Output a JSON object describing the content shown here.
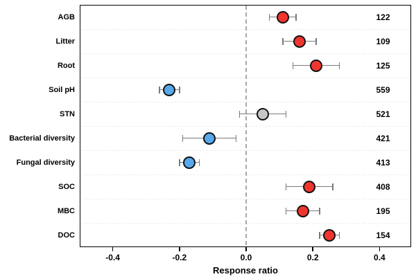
{
  "chart_data": {
    "type": "scatter",
    "subtype": "forest-plot-means-with-confidence-intervals",
    "title": "",
    "xlabel": "Response ratio",
    "xlim": [
      -0.5,
      0.5
    ],
    "xticks": [
      {
        "value": -0.4,
        "label": "-0.4"
      },
      {
        "value": -0.2,
        "label": "-0.2"
      },
      {
        "value": 0.0,
        "label": "0.0"
      },
      {
        "value": 0.2,
        "label": "0.2"
      },
      {
        "value": 0.4,
        "label": "0.4"
      }
    ],
    "zero_reference_line": 0.0,
    "grid": "dotted horizontal separators between category rows",
    "legend_position": "none",
    "points": [
      {
        "category": "AGB",
        "mean": 0.11,
        "ci_low": 0.07,
        "ci_high": 0.15,
        "n": 122,
        "color": "red"
      },
      {
        "category": "Litter",
        "mean": 0.16,
        "ci_low": 0.11,
        "ci_high": 0.21,
        "n": 109,
        "color": "red"
      },
      {
        "category": "Root",
        "mean": 0.21,
        "ci_low": 0.14,
        "ci_high": 0.28,
        "n": 125,
        "color": "red"
      },
      {
        "category": "Soil pH",
        "mean": -0.23,
        "ci_low": -0.26,
        "ci_high": -0.2,
        "n": 559,
        "color": "blue"
      },
      {
        "category": "STN",
        "mean": 0.05,
        "ci_low": -0.02,
        "ci_high": 0.12,
        "n": 521,
        "color": "gray"
      },
      {
        "category": "Bacterial diversity",
        "mean": -0.11,
        "ci_low": -0.19,
        "ci_high": -0.03,
        "n": 421,
        "color": "blue"
      },
      {
        "category": "Fungal diversity",
        "mean": -0.17,
        "ci_low": -0.2,
        "ci_high": -0.14,
        "n": 413,
        "color": "blue"
      },
      {
        "category": "SOC",
        "mean": 0.19,
        "ci_low": 0.12,
        "ci_high": 0.26,
        "n": 408,
        "color": "red"
      },
      {
        "category": "MBC",
        "mean": 0.17,
        "ci_low": 0.12,
        "ci_high": 0.22,
        "n": 195,
        "color": "red"
      },
      {
        "category": "DOC",
        "mean": 0.25,
        "ci_low": 0.22,
        "ci_high": 0.28,
        "n": 154,
        "color": "red"
      }
    ],
    "colors": {
      "red": "#f0352f",
      "blue": "#58a8ec",
      "gray": "#c6c6c6",
      "error_bar": "#7a7a7a",
      "zero_line": "#a8a8a8",
      "gridline": "#e0e0e0",
      "border": "#000000"
    }
  }
}
